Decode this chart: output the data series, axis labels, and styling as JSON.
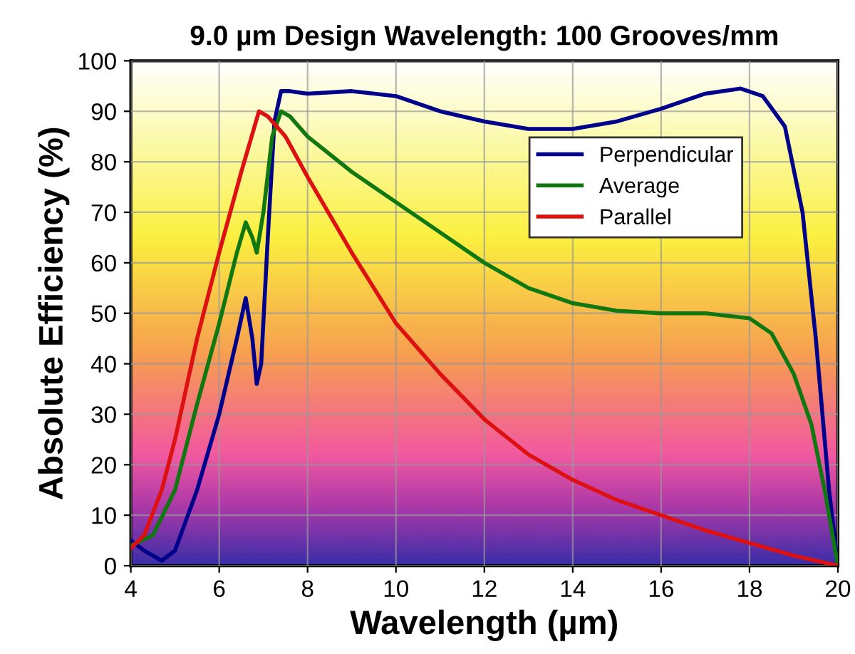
{
  "chart_data": {
    "type": "line",
    "title": "9.0 µm Design Wavelength: 100 Grooves/mm",
    "xlabel": "Wavelength (µm)",
    "ylabel": "Absolute Efficiency (%)",
    "xlim": [
      4,
      20
    ],
    "ylim": [
      0,
      100
    ],
    "xticks": [
      4,
      6,
      8,
      10,
      12,
      14,
      16,
      18,
      20
    ],
    "yticks": [
      0,
      10,
      20,
      30,
      40,
      50,
      60,
      70,
      80,
      90,
      100
    ],
    "grid": true,
    "legend": "top right",
    "series": [
      {
        "name": "Perpendicular",
        "color": "#00008b",
        "x": [
          4,
          4.3,
          4.7,
          5,
          5.5,
          6,
          6.4,
          6.6,
          6.75,
          6.85,
          6.95,
          7.1,
          7.25,
          7.4,
          7.6,
          8,
          9,
          10,
          11,
          12,
          13,
          14,
          15,
          16,
          17,
          17.8,
          18.3,
          18.8,
          19.2,
          19.5,
          19.8,
          20
        ],
        "values": [
          5,
          3,
          1,
          3,
          15,
          30,
          45,
          53,
          45,
          36,
          40,
          65,
          88,
          94,
          94,
          93.5,
          94,
          93,
          90,
          88,
          86.5,
          86.5,
          88,
          90.5,
          93.5,
          94.5,
          93,
          87,
          70,
          45,
          15,
          0
        ]
      },
      {
        "name": "Average",
        "color": "#117711",
        "x": [
          4,
          4.5,
          5,
          5.5,
          6,
          6.4,
          6.6,
          6.75,
          6.85,
          7.0,
          7.2,
          7.4,
          7.6,
          8,
          9,
          10,
          11,
          12,
          13,
          14,
          15,
          16,
          17,
          18,
          18.5,
          19,
          19.4,
          19.7,
          20
        ],
        "values": [
          4,
          6,
          15,
          32,
          48,
          62,
          68,
          65,
          62,
          70,
          85,
          90,
          89,
          85,
          78,
          72,
          66,
          60,
          55,
          52,
          50.5,
          50,
          50,
          49,
          46,
          38,
          28,
          15,
          0
        ]
      },
      {
        "name": "Parallel",
        "color": "#dd1111",
        "x": [
          4,
          4.3,
          4.7,
          5,
          5.5,
          6,
          6.5,
          6.9,
          7.1,
          7.5,
          8,
          9,
          10,
          11,
          12,
          13,
          14,
          15,
          16,
          17,
          18,
          19,
          20
        ],
        "values": [
          3.5,
          6,
          15,
          25,
          45,
          62,
          78,
          90,
          89,
          85,
          77,
          62,
          48,
          38,
          29,
          22,
          17,
          13,
          10,
          7,
          4.5,
          2,
          0
        ]
      }
    ]
  }
}
